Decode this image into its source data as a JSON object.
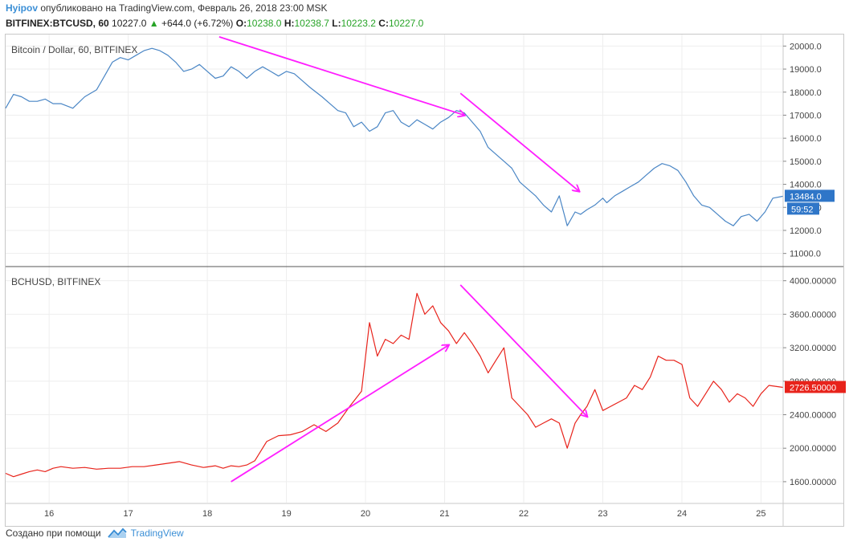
{
  "header": {
    "author": "Hyipov",
    "published": "опубликовано на TradingView.com, Февраль 26, 2018 23:00 MSK",
    "symbol": "BITFINEX:BTCUSD, 60",
    "last": "10227.0",
    "change_arrow": "▲",
    "change": "+644.0 (+6.72%)",
    "o_label": "O:",
    "o_value": "10238.0",
    "h_label": "H:",
    "h_value": "10238.7",
    "l_label": "L:",
    "l_value": "10223.2",
    "c_label": "C:",
    "c_value": "10227.0"
  },
  "footer": {
    "created": "Создано при помощи",
    "brand": "TradingView"
  },
  "colors": {
    "btc_line": "#4a86c5",
    "bch_line": "#e8231b",
    "arrow": "#ff1eff",
    "grid": "#eeeeee",
    "btc_badge": "#2f76c8",
    "bch_badge": "#e8231b"
  },
  "chart_data": [
    {
      "type": "line",
      "title": "Bitcoin / Dollar, 60, BITFINEX",
      "series": [
        {
          "name": "BTCUSD",
          "color": "#4a86c5",
          "x": [
            15.45,
            15.55,
            15.65,
            15.75,
            15.85,
            15.95,
            16.05,
            16.15,
            16.3,
            16.45,
            16.6,
            16.7,
            16.8,
            16.9,
            17.0,
            17.1,
            17.2,
            17.3,
            17.4,
            17.5,
            17.6,
            17.7,
            17.8,
            17.9,
            18.0,
            18.1,
            18.2,
            18.3,
            18.4,
            18.5,
            18.6,
            18.7,
            18.8,
            18.9,
            19.0,
            19.1,
            19.2,
            19.3,
            19.45,
            19.55,
            19.65,
            19.75,
            19.85,
            19.95,
            20.05,
            20.15,
            20.25,
            20.35,
            20.45,
            20.55,
            20.65,
            20.75,
            20.85,
            20.95,
            21.05,
            21.15,
            21.25,
            21.35,
            21.45,
            21.55,
            21.65,
            21.75,
            21.85,
            21.95,
            22.05,
            22.15,
            22.25,
            22.35,
            22.45,
            22.55,
            22.65,
            22.72,
            22.8,
            22.9,
            23.0,
            23.05,
            23.15,
            23.25,
            23.35,
            23.45,
            23.55,
            23.65,
            23.75,
            23.85,
            23.95,
            24.05,
            24.15,
            24.25,
            24.35,
            24.45,
            24.55,
            24.65,
            24.75,
            24.85,
            24.95,
            25.05,
            25.15,
            25.28
          ],
          "values": [
            17300,
            17900,
            17800,
            17600,
            17600,
            17700,
            17500,
            17500,
            17300,
            17800,
            18100,
            18700,
            19300,
            19500,
            19400,
            19600,
            19800,
            19900,
            19800,
            19600,
            19300,
            18900,
            19000,
            19200,
            18900,
            18600,
            18700,
            19100,
            18900,
            18600,
            18900,
            19100,
            18900,
            18700,
            18900,
            18800,
            18500,
            18200,
            17800,
            17500,
            17200,
            17100,
            16500,
            16700,
            16300,
            16500,
            17100,
            17200,
            16700,
            16500,
            16800,
            16600,
            16400,
            16700,
            16900,
            17200,
            17100,
            16700,
            16300,
            15600,
            15300,
            15000,
            14700,
            14100,
            13800,
            13500,
            13100,
            12800,
            13500,
            12200,
            12800,
            12700,
            12900,
            13100,
            13400,
            13200,
            13500,
            13700,
            13900,
            14100,
            14400,
            14700,
            14900,
            14800,
            14600,
            14100,
            13500,
            13100,
            13000,
            12700,
            12400,
            12200,
            12600,
            12700,
            12400,
            12800,
            13400,
            13484
          ]
        }
      ],
      "ylim": [
        10500,
        20500
      ],
      "yticks": [
        "20000.0",
        "19000.0",
        "18000.0",
        "17000.0",
        "16000.0",
        "15000.0",
        "14000.0",
        "13000.0",
        "12000.0",
        "11000.0"
      ],
      "last_label": "13484.0",
      "last_value": 13484,
      "countdown": "59:52",
      "annotations": [
        {
          "type": "arrow",
          "from": [
            18.15,
            20400
          ],
          "to": [
            21.25,
            17000
          ]
        },
        {
          "type": "arrow",
          "from": [
            21.2,
            17950
          ],
          "to": [
            22.7,
            13700
          ]
        }
      ]
    },
    {
      "type": "line",
      "title": "BCHUSD, BITFINEX",
      "series": [
        {
          "name": "BCHUSD",
          "color": "#e8231b",
          "x": [
            15.45,
            15.55,
            15.65,
            15.75,
            15.85,
            15.95,
            16.05,
            16.15,
            16.3,
            16.45,
            16.6,
            16.75,
            16.9,
            17.05,
            17.2,
            17.35,
            17.5,
            17.65,
            17.8,
            17.95,
            18.1,
            18.2,
            18.3,
            18.4,
            18.5,
            18.6,
            18.75,
            18.9,
            19.05,
            19.2,
            19.35,
            19.5,
            19.65,
            19.8,
            19.95,
            20.05,
            20.15,
            20.25,
            20.35,
            20.45,
            20.55,
            20.65,
            20.75,
            20.85,
            20.95,
            21.05,
            21.15,
            21.25,
            21.35,
            21.45,
            21.55,
            21.65,
            21.75,
            21.85,
            21.95,
            22.05,
            22.15,
            22.25,
            22.35,
            22.45,
            22.55,
            22.65,
            22.72,
            22.8,
            22.9,
            23.0,
            23.1,
            23.2,
            23.3,
            23.4,
            23.5,
            23.6,
            23.7,
            23.8,
            23.9,
            24.0,
            24.1,
            24.2,
            24.3,
            24.4,
            24.5,
            24.6,
            24.7,
            24.8,
            24.9,
            25.0,
            25.1,
            25.28
          ],
          "values": [
            1700,
            1660,
            1690,
            1720,
            1740,
            1720,
            1760,
            1780,
            1760,
            1770,
            1750,
            1760,
            1760,
            1780,
            1780,
            1800,
            1820,
            1840,
            1800,
            1770,
            1790,
            1760,
            1790,
            1780,
            1800,
            1850,
            2080,
            2150,
            2160,
            2200,
            2280,
            2200,
            2300,
            2500,
            2680,
            3500,
            3100,
            3300,
            3250,
            3350,
            3300,
            3850,
            3600,
            3700,
            3500,
            3400,
            3250,
            3380,
            3250,
            3100,
            2900,
            3050,
            3200,
            2600,
            2500,
            2400,
            2250,
            2300,
            2350,
            2300,
            2000,
            2300,
            2400,
            2500,
            2700,
            2450,
            2500,
            2550,
            2600,
            2750,
            2700,
            2850,
            3100,
            3050,
            3050,
            3000,
            2600,
            2500,
            2650,
            2800,
            2700,
            2550,
            2650,
            2600,
            2500,
            2650,
            2750,
            2726.5
          ]
        }
      ],
      "ylim": [
        1350,
        4150
      ],
      "yticks": [
        "4000.00000",
        "3600.00000",
        "3200.00000",
        "2800.00000",
        "2400.00000",
        "2000.00000",
        "1600.00000"
      ],
      "last_label": "2726.50000",
      "last_value": 2726.5,
      "annotations": [
        {
          "type": "arrow",
          "from": [
            18.3,
            1600
          ],
          "to": [
            21.05,
            3230
          ]
        },
        {
          "type": "arrow",
          "from": [
            21.2,
            3950
          ],
          "to": [
            22.8,
            2380
          ]
        }
      ]
    }
  ],
  "xaxis": {
    "ticks": [
      {
        "day": 16,
        "label": "16"
      },
      {
        "day": 17,
        "label": "17"
      },
      {
        "day": 18,
        "label": "18"
      },
      {
        "day": 19,
        "label": "19"
      },
      {
        "day": 20,
        "label": "20"
      },
      {
        "day": 21,
        "label": "21"
      },
      {
        "day": 22,
        "label": "22"
      },
      {
        "day": 23,
        "label": "23"
      },
      {
        "day": 24,
        "label": "24"
      },
      {
        "day": 25,
        "label": "25"
      }
    ],
    "range": [
      15.45,
      25.28
    ]
  }
}
